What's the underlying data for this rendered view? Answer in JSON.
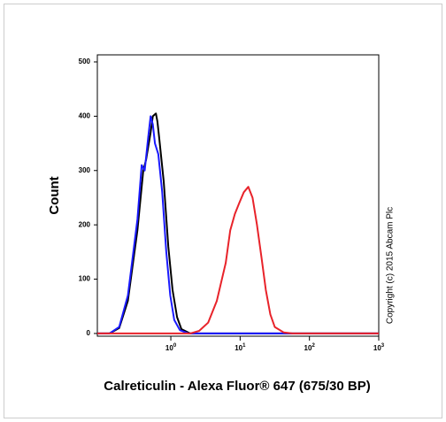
{
  "chart_data": {
    "type": "line",
    "xlabel": "Calreticulin - Alexa Fluor® 647 (675/30 BP)",
    "ylabel": "Count",
    "annotation": "Copyright (c) 2015 Abcam Plc",
    "xscale": "log",
    "xlim": [
      0.087,
      1000
    ],
    "ylim": [
      -5,
      513
    ],
    "xticks": [
      {
        "value": 1,
        "label": "10",
        "exponent": "0"
      },
      {
        "value": 10,
        "label": "10",
        "exponent": "1"
      },
      {
        "value": 100,
        "label": "10",
        "exponent": "2"
      },
      {
        "value": 1000,
        "label": "10",
        "exponent": "3"
      }
    ],
    "yticks": [
      0,
      100,
      200,
      300,
      400,
      500
    ],
    "series": [
      {
        "color": "#000000",
        "x": [
          0.087,
          0.13,
          0.18,
          0.24,
          0.33,
          0.4,
          0.44,
          0.51,
          0.55,
          0.61,
          0.64,
          0.68,
          0.79,
          0.92,
          1.06,
          1.23,
          1.42,
          1.9,
          1000
        ],
        "values": [
          0,
          0,
          10,
          60,
          190,
          300,
          320,
          370,
          400,
          405,
          390,
          360,
          280,
          160,
          80,
          30,
          8,
          0,
          0
        ]
      },
      {
        "color": "#1a1aff",
        "x": [
          0.087,
          0.13,
          0.18,
          0.24,
          0.33,
          0.38,
          0.42,
          0.47,
          0.51,
          0.55,
          0.59,
          0.66,
          0.75,
          0.86,
          0.98,
          1.12,
          1.35,
          1.8,
          1000
        ],
        "values": [
          0,
          0,
          12,
          70,
          210,
          310,
          300,
          360,
          400,
          385,
          350,
          330,
          260,
          150,
          70,
          25,
          6,
          0,
          0
        ]
      },
      {
        "color": "#e8232a",
        "x": [
          0.087,
          1.9,
          2.57,
          3.45,
          4.6,
          6.2,
          7.2,
          8.4,
          9.7,
          11.3,
          13.1,
          15.1,
          17.5,
          20.3,
          23.5,
          27.3,
          31.6,
          42.4,
          57,
          1000
        ],
        "values": [
          0,
          0,
          5,
          20,
          60,
          130,
          190,
          220,
          240,
          260,
          270,
          250,
          200,
          140,
          80,
          35,
          12,
          2,
          0,
          0
        ]
      }
    ]
  }
}
